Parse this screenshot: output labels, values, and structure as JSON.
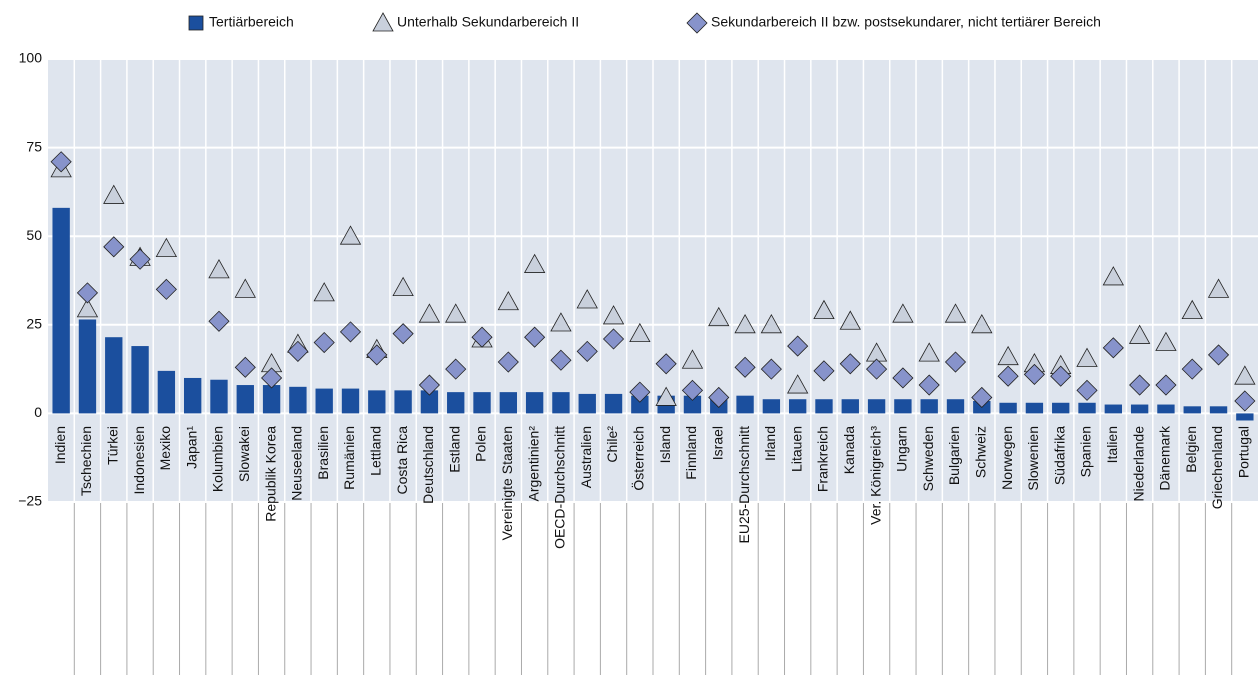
{
  "chart_data": {
    "type": "bar",
    "categories": [
      "Indien",
      "Tschechien",
      "Türkei",
      "Indonesien",
      "Mexiko",
      "Japan¹",
      "Kolumbien",
      "Slowakei",
      "Republik Korea",
      "Neuseeland",
      "Brasilien",
      "Rumänien",
      "Lettland",
      "Costa Rica",
      "Deutschland",
      "Estland",
      "Polen",
      "Vereinigte Staaten",
      "Argentinien²",
      "OECD-Durchschnitt",
      "Australien",
      "Chile²",
      "Österreich",
      "Island",
      "Finnland",
      "Israel",
      "EU25-Durchschnitt",
      "Irland",
      "Litauen",
      "Frankreich",
      "Kanada",
      "Ver. Königreich³",
      "Ungarn",
      "Schweden",
      "Bulgarien",
      "Schweiz",
      "Norwegen",
      "Slowenien",
      "Südafrika",
      "Spanien",
      "Italien",
      "Niederlande",
      "Dänemark",
      "Belgien",
      "Griechenland",
      "Portugal"
    ],
    "series": [
      {
        "name": "Tertiärbereich",
        "type": "bar",
        "color": "#1b4f9e",
        "values": [
          58,
          26.5,
          21.5,
          19,
          12,
          10,
          9.5,
          8,
          8,
          7.5,
          7,
          7,
          6.5,
          6.5,
          6.5,
          6,
          6,
          6,
          6,
          6,
          5.5,
          5.5,
          5,
          5,
          5,
          5,
          5,
          4,
          4,
          4,
          4,
          4,
          4,
          4,
          4,
          3.5,
          3,
          3,
          3,
          3,
          2.5,
          2.5,
          2.5,
          2,
          2,
          -2
        ]
      },
      {
        "name": "Unterhalb Sekundarbereich II",
        "type": "scatter",
        "marker": "triangle",
        "color": "#c9d0dc",
        "values": [
          69,
          29.5,
          61.5,
          44,
          46.5,
          null,
          40.5,
          35,
          14,
          19.5,
          34,
          50,
          18,
          35.5,
          28,
          28,
          21,
          31.5,
          42,
          25.5,
          32,
          27.5,
          22.5,
          4.5,
          15,
          27,
          25,
          25,
          8,
          29,
          26,
          17,
          28,
          17,
          28,
          25,
          16,
          14,
          13.5,
          15.5,
          38.5,
          22,
          20,
          29,
          35,
          10.5
        ]
      },
      {
        "name": "Sekundarbereich II bzw. postsekundarer, nicht tertiärer Bereich",
        "type": "scatter",
        "marker": "diamond",
        "color": "#8793cb",
        "values": [
          71,
          34,
          47,
          43.5,
          35,
          null,
          26,
          13,
          10,
          17.5,
          20,
          23,
          16.5,
          22.5,
          8,
          12.5,
          21.5,
          14.5,
          21.5,
          15,
          17.5,
          21,
          6,
          14,
          6.5,
          4.5,
          13,
          12.5,
          19,
          12,
          14,
          12.5,
          10,
          8,
          14.5,
          4.5,
          10.5,
          11,
          10.5,
          6.5,
          18.5,
          8,
          8,
          12.5,
          16.5,
          3.5
        ]
      }
    ],
    "ylim": [
      -25,
      100
    ],
    "yticks": [
      {
        "value": -25,
        "label": "−25"
      },
      0,
      25,
      50,
      75,
      100
    ],
    "grid": true
  }
}
